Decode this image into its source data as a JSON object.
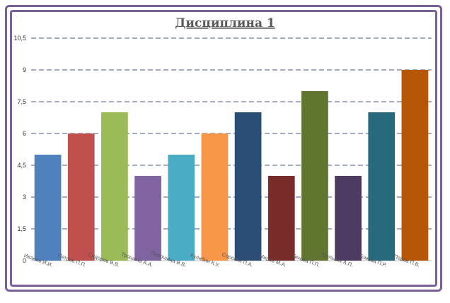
{
  "chart_data": {
    "type": "bar",
    "title": "Дисциплина 1",
    "xlabel": "",
    "ylabel": "",
    "ylim": [
      0,
      10.5
    ],
    "yticks": [
      "0",
      "1,5",
      "3",
      "4,5",
      "6",
      "7,5",
      "9",
      "10,5"
    ],
    "grid": true,
    "categories": [
      "Иванов И.И.",
      "Петров П.П.",
      "Сидоров В.В.",
      "Трошина А.А.",
      "Порошина В.В.",
      "Кулибин К.У.",
      "Сорокин П.А.",
      "Миров М.А.",
      "Тихова П.П.",
      "Сольник А.П.",
      "Томова П.Р.",
      "Перов П.В."
    ],
    "values": [
      5,
      6,
      7,
      4,
      5,
      6,
      7,
      4,
      8,
      4,
      7,
      9
    ],
    "colors": [
      "#4f81bd",
      "#c0504d",
      "#9bbb59",
      "#8064a2",
      "#4bacc6",
      "#f79646",
      "#2c4d75",
      "#772c2a",
      "#5f7530",
      "#4d3b62",
      "#276a7c",
      "#b65708"
    ]
  }
}
